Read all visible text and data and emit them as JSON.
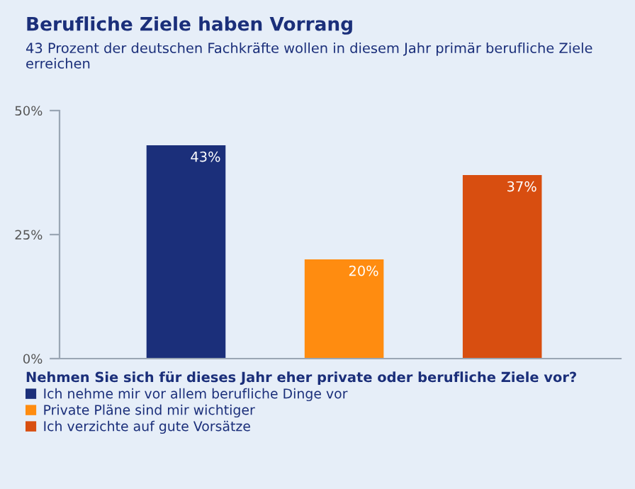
{
  "chart_data": {
    "type": "bar",
    "title": "Berufliche Ziele haben Vorrang",
    "subtitle": "43 Prozent der deutschen Fachkräfte wollen in diesem Jahr primär berufliche Ziele erreichen",
    "categories": [
      null,
      null,
      null
    ],
    "series": [
      {
        "name": "Ich nehme mir vor allem berufliche Dinge vor",
        "color": "#1b2f7a",
        "values": [
          43,
          null,
          null
        ],
        "value_labels": [
          "43%",
          null,
          null
        ]
      },
      {
        "name": "Private Pläne sind mir wichtiger",
        "color": "#ff8c10",
        "values": [
          null,
          20,
          null
        ],
        "value_labels": [
          null,
          "20%",
          null
        ]
      },
      {
        "name": "Ich verzichte auf gute Vorsätze",
        "color": "#d84e10",
        "values": [
          null,
          null,
          37
        ],
        "value_labels": [
          null,
          null,
          "37%"
        ]
      }
    ],
    "ylim": [
      0,
      50
    ],
    "yticks": [
      {
        "value": 0,
        "label": "0%"
      },
      {
        "value": 25,
        "label": "25%"
      },
      {
        "value": 50,
        "label": "50%"
      }
    ],
    "tick_labels": "y",
    "grid": false,
    "legend": "bottom",
    "legend_title": "Nehmen Sie sich für dieses Jahr eher private oder berufliche Ziele vor?"
  }
}
